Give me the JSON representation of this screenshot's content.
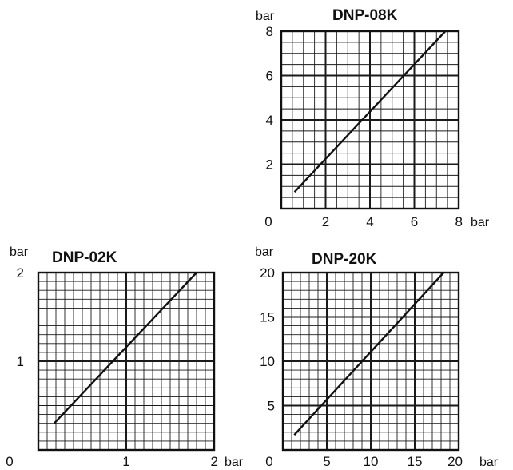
{
  "chart_data": [
    {
      "type": "line",
      "title": "DNP-08K",
      "y_unit": "bar",
      "x_unit": "bar",
      "xlim": [
        0,
        8
      ],
      "ylim": [
        0,
        8
      ],
      "x_ticks": [
        "0",
        "2",
        "4",
        "6",
        "8"
      ],
      "y_ticks": [
        "2",
        "4",
        "6",
        "8"
      ],
      "x_minor_step": 0.5,
      "y_minor_step": 0.5,
      "x_major_step": 2,
      "y_major_step": 2,
      "grid": true,
      "series": [
        {
          "x": [
            0.6,
            7.4
          ],
          "y": [
            0.75,
            8.0
          ]
        }
      ]
    },
    {
      "type": "line",
      "title": "DNP-02K",
      "y_unit": "bar",
      "x_unit": "bar",
      "xlim": [
        0,
        2
      ],
      "ylim": [
        0,
        2
      ],
      "x_ticks": [
        "0",
        "1",
        "2"
      ],
      "y_ticks": [
        "1",
        "2"
      ],
      "x_minor_step": 0.1,
      "y_minor_step": 0.1,
      "x_major_step": 1,
      "y_major_step": 1,
      "grid": true,
      "series": [
        {
          "x": [
            0.18,
            1.8
          ],
          "y": [
            0.3,
            2.0
          ]
        }
      ]
    },
    {
      "type": "line",
      "title": "DNP-20K",
      "y_unit": "bar",
      "x_unit": "bar",
      "xlim": [
        0,
        20
      ],
      "ylim": [
        0,
        20
      ],
      "x_ticks": [
        "0",
        "5",
        "10",
        "15",
        "20"
      ],
      "y_ticks": [
        "5",
        "10",
        "15",
        "20"
      ],
      "x_minor_step": 1,
      "y_minor_step": 1,
      "x_major_step": 5,
      "y_major_step": 5,
      "grid": true,
      "series": [
        {
          "x": [
            1.3,
            18.3
          ],
          "y": [
            1.7,
            20.0
          ]
        }
      ]
    }
  ]
}
